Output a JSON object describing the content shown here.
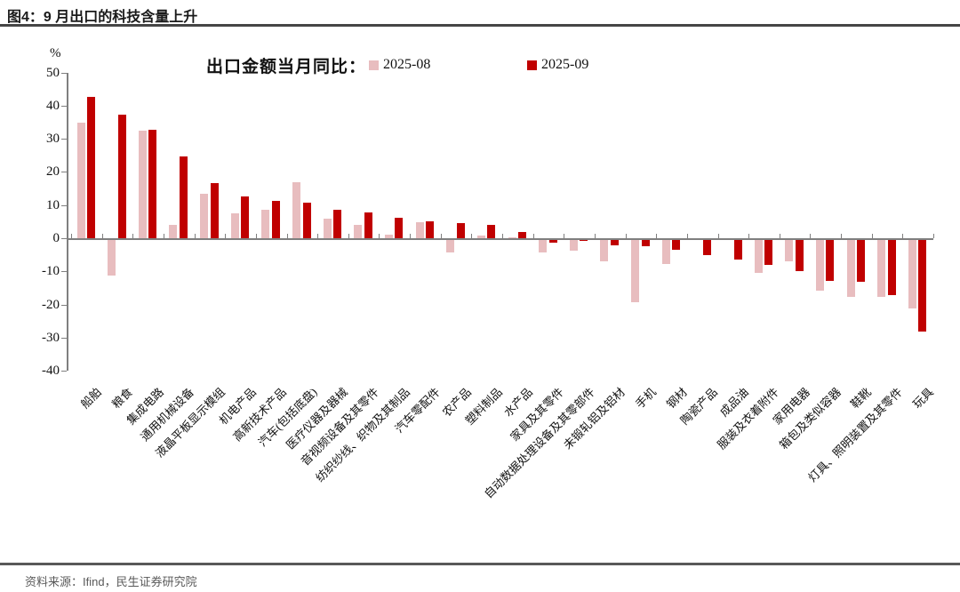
{
  "header": {
    "title": "图4：9 月出口的科技含量上升"
  },
  "footer": {
    "source": "资料来源：Ifind，民生证券研究院"
  },
  "chart_data": {
    "type": "bar",
    "title": "出口金额当月同比：",
    "unit_label": "%",
    "ylim": [
      -40,
      50
    ],
    "ytick_step": 10,
    "grid": false,
    "legend_position": "top-center",
    "categories": [
      "船舶",
      "粮食",
      "集成电路",
      "通用机械设备",
      "液晶平板显示模组",
      "机电产品",
      "高新技术产品",
      "汽车(包括底盘)",
      "医疗仪器及器械",
      "音视频设备及其零件",
      "纺织纱线、织物及其制品",
      "汽车零配件",
      "农产品",
      "塑料制品",
      "水产品",
      "家具及其零件",
      "自动数据处理设备及其零部件",
      "未锻轧铝及铝材",
      "手机",
      "钢材",
      "陶瓷产品",
      "成品油",
      "服装及衣着附件",
      "家用电器",
      "箱包及类似容器",
      "鞋靴",
      "灯具、照明装置及其零件",
      "玩具"
    ],
    "series": [
      {
        "name": "2025-08",
        "color": "#E8BDBF",
        "values": [
          34.8,
          -11.0,
          32.5,
          4.0,
          13.4,
          7.5,
          8.6,
          16.8,
          6.0,
          3.9,
          1.2,
          4.8,
          -4.1,
          0.8,
          0.2,
          -3.9,
          -3.4,
          -6.8,
          -19.1,
          -7.6,
          -0.3,
          -0.4,
          -10.1,
          -6.6,
          -15.5,
          -17.3,
          -17.4,
          -21.0
        ]
      },
      {
        "name": "2025-09",
        "color": "#C00000",
        "values": [
          42.5,
          37.2,
          32.6,
          24.6,
          16.7,
          12.5,
          11.2,
          10.7,
          8.6,
          7.8,
          6.2,
          5.1,
          4.5,
          3.9,
          1.9,
          -1.0,
          -0.5,
          -1.9,
          -2.1,
          -3.3,
          -4.8,
          -6.1,
          -7.9,
          -9.7,
          -12.7,
          -13.0,
          -16.8,
          -28.0
        ]
      }
    ]
  }
}
